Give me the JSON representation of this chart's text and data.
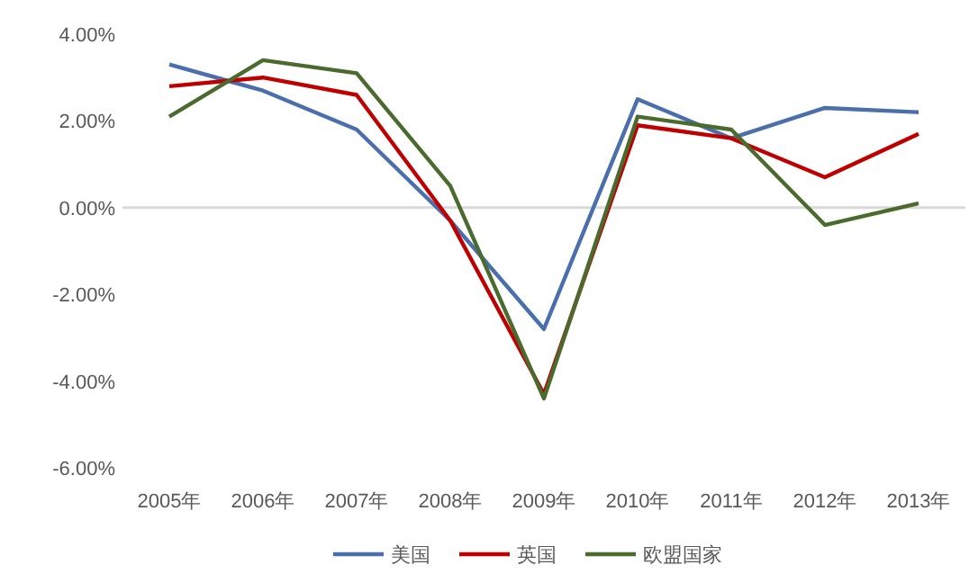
{
  "chart_data": {
    "type": "line",
    "categories": [
      "2005年",
      "2006年",
      "2007年",
      "2008年",
      "2009年",
      "2010年",
      "2011年",
      "2012年",
      "2013年"
    ],
    "series": [
      {
        "name": "美国",
        "color": "#4a6fac",
        "values": [
          3.3,
          2.7,
          1.8,
          -0.3,
          -2.8,
          2.5,
          1.6,
          2.3,
          2.2
        ]
      },
      {
        "name": "英国",
        "color": "#c00000",
        "values": [
          2.8,
          3.0,
          2.6,
          -0.3,
          -4.3,
          1.9,
          1.6,
          0.7,
          1.7
        ]
      },
      {
        "name": "欧盟国家",
        "color": "#4a6a2e",
        "values": [
          2.1,
          3.4,
          3.1,
          0.5,
          -4.4,
          2.1,
          1.8,
          -0.4,
          0.1
        ]
      }
    ],
    "ylim": [
      -6,
      4
    ],
    "yticks": [
      {
        "value": -6,
        "label": "-6.00%"
      },
      {
        "value": -4,
        "label": "-4.00%"
      },
      {
        "value": -2,
        "label": "-2.00%"
      },
      {
        "value": 0,
        "label": "0.00%"
      },
      {
        "value": 2,
        "label": "2.00%"
      },
      {
        "value": 4,
        "label": "4.00%"
      }
    ],
    "ref_lines": [
      {
        "axis": "y",
        "value": 0,
        "color": "#d9d9d9"
      }
    ],
    "legend": "bottom",
    "grid": false,
    "marker": "none",
    "line_style": "solid"
  }
}
